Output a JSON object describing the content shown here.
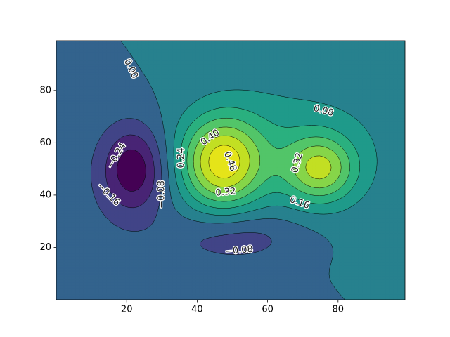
{
  "chart_data": {
    "type": "contour",
    "xlim": [
      0,
      99
    ],
    "ylim": [
      0,
      99
    ],
    "xticks": [
      20,
      40,
      60,
      80
    ],
    "yticks": [
      20,
      40,
      60,
      80
    ],
    "levels": [
      -0.32,
      {
        "value": -0.24,
        "label": "−0.24"
      },
      {
        "value": -0.16,
        "label": "−0.16"
      },
      {
        "value": -0.08,
        "label": "−0.08"
      },
      {
        "value": 0,
        "label": "0.00"
      },
      {
        "value": 0.08,
        "label": "0.08"
      },
      {
        "value": 0.16,
        "label": "0.16"
      },
      {
        "value": 0.24,
        "label": "0.24"
      },
      {
        "value": 0.32,
        "label": "0.32"
      },
      {
        "value": 0.4,
        "label": "0.40"
      },
      {
        "value": 0.48,
        "label": "0.48"
      },
      0.56
    ],
    "colors": [
      "#440154",
      "#482475",
      "#414487",
      "#33638d",
      "#27818e",
      "#1f9a8a",
      "#2ab07f",
      "#52c569",
      "#86d549",
      "#c2df23",
      "#e5e419"
    ],
    "surface": {
      "origin": [
        50,
        50
      ],
      "slope": [
        0.0008,
        0.000512
      ],
      "bumps": [
        {
          "x": 22,
          "y": 50,
          "amp": -0.29,
          "sx": 6.5,
          "sy": 12
        },
        {
          "x": 47,
          "y": 52,
          "amp": 0.45,
          "sx": 8,
          "sy": 12
        },
        {
          "x": 75,
          "y": 50,
          "amp": 0.35,
          "sx": 7,
          "sy": 9
        },
        {
          "x": 58,
          "y": 57,
          "amp": 0.12,
          "sx": 18,
          "sy": 16
        },
        {
          "x": 52,
          "y": 24,
          "amp": -0.12,
          "sx": 13,
          "sy": 7
        }
      ]
    }
  }
}
